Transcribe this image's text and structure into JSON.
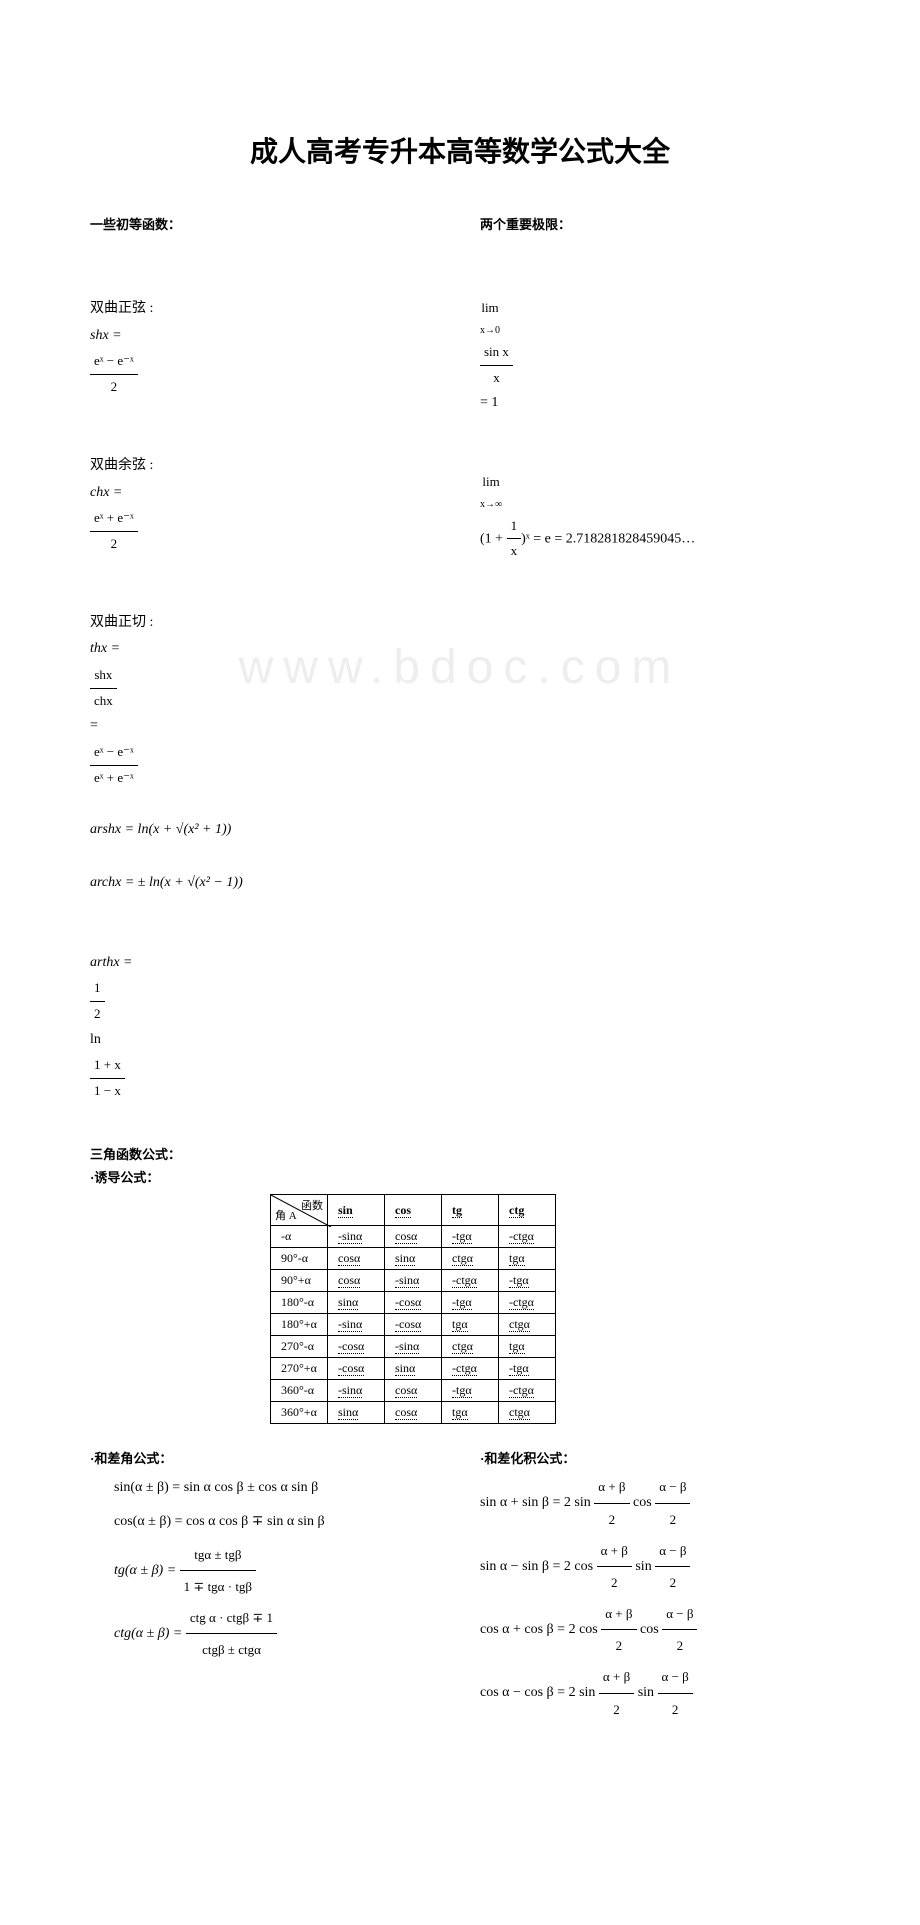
{
  "title": "成人高考专升本高等数学公式大全",
  "sec1": {
    "left_heading": "一些初等函数：",
    "right_heading": "两个重要极限："
  },
  "hyp": {
    "sh_label": "双曲正弦 :",
    "sh_lhs": "shx =",
    "sh_num": "eˣ − e⁻ˣ",
    "sh_den": "2",
    "ch_label": "双曲余弦 :",
    "ch_lhs": "chx =",
    "ch_num": "eˣ + e⁻ˣ",
    "ch_den": "2",
    "th_label": "双曲正切 :",
    "th_lhs": "thx =",
    "th_num1": "shx",
    "th_den1": "chx",
    "th_eq": " = ",
    "th_num2": "eˣ − e⁻ˣ",
    "th_den2": "eˣ + e⁻ˣ",
    "arsh": "arshx = ln(x + √(x² + 1))",
    "arch": "archx = ± ln(x + √(x² − 1))",
    "arth_lhs": "arthx =",
    "arth_coef_num": "1",
    "arth_coef_den": "2",
    "arth_ln": "ln",
    "arth_num": "1 + x",
    "arth_den": "1 − x"
  },
  "limits": {
    "l1_lim": "lim",
    "l1_sub": "x→0",
    "l1_num": "sin x",
    "l1_den": "x",
    "l1_eq": " = 1",
    "l2_lim": "lim",
    "l2_sub": "x→∞",
    "l2_body": "(1 + ",
    "l2_num": "1",
    "l2_den": "x",
    "l2_tail": ")ˣ = e = 2.718281828459045…"
  },
  "trig_heading": "三角函数公式：",
  "induction_heading": "·诱导公式：",
  "table": {
    "diag_top": "函数",
    "diag_bot": "角 A",
    "cols": [
      "sin",
      "cos",
      "tg",
      "ctg"
    ],
    "rows": [
      {
        "a": "-α",
        "v": [
          "-sinα",
          "cosα",
          "-tgα",
          "-ctgα"
        ]
      },
      {
        "a": "90°-α",
        "v": [
          "cosα",
          "sinα",
          "ctgα",
          "tgα"
        ]
      },
      {
        "a": "90°+α",
        "v": [
          "cosα",
          "-sinα",
          "-ctgα",
          "-tgα"
        ]
      },
      {
        "a": "180°-α",
        "v": [
          "sinα",
          "-cosα",
          "-tgα",
          "-ctgα"
        ]
      },
      {
        "a": "180°+α",
        "v": [
          "-sinα",
          "-cosα",
          "tgα",
          "ctgα"
        ]
      },
      {
        "a": "270°-α",
        "v": [
          "-cosα",
          "-sinα",
          "ctgα",
          "tgα"
        ]
      },
      {
        "a": "270°+α",
        "v": [
          "-cosα",
          "sinα",
          "-ctgα",
          "-tgα"
        ]
      },
      {
        "a": "360°-α",
        "v": [
          "-sinα",
          "cosα",
          "-tgα",
          "-ctgα"
        ]
      },
      {
        "a": "360°+α",
        "v": [
          "sinα",
          "cosα",
          "tgα",
          "ctgα"
        ]
      }
    ]
  },
  "sum_heading": "·和差角公式：",
  "prod_heading": "·和差化积公式：",
  "sum": {
    "l1": "sin(α ± β) = sin α cos β ± cos α sin β",
    "l2": "cos(α ± β) = cos α cos β ∓ sin α sin β",
    "l3_lhs": "tg(α ± β) =",
    "l3_num": "tgα ± tgβ",
    "l3_den": "1 ∓ tgα · tgβ",
    "l4_lhs": "ctg(α ± β) =",
    "l4_num": "ctg α · ctgβ ∓ 1",
    "l4_den": "ctgβ ± ctgα"
  },
  "prod": {
    "r1_lhs": "sin α + sin β = 2 sin",
    "half_sum_num": "α + β",
    "half_den": "2",
    "cos_word": "cos",
    "half_diff_num": "α − β",
    "r2_lhs": "sin α − sin β = 2 cos",
    "sin_word": "sin",
    "r3_lhs": "cos α + cos β = 2 cos",
    "r4_lhs": "cos α − cos β = 2 sin"
  },
  "watermark": "www.bdoc.com",
  "colors": {
    "text": "#000000",
    "watermark": "#eeeeee",
    "background": "#ffffff",
    "border": "#000000"
  }
}
